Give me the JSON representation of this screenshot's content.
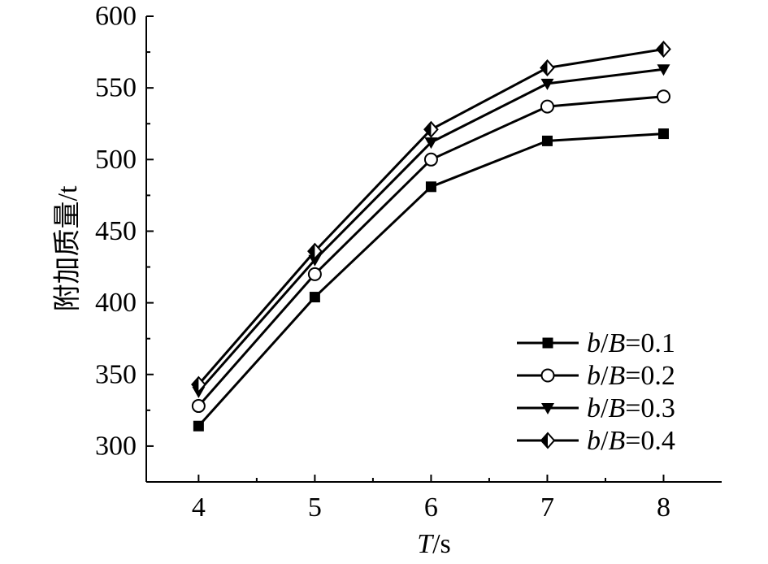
{
  "chart_data": {
    "type": "line",
    "xlabel": {
      "var": "T",
      "unit": "/s"
    },
    "ylabel": "附加质量/t",
    "xlim": [
      3.55,
      8.5
    ],
    "ylim": [
      275,
      600
    ],
    "x_ticks": [
      4,
      5,
      6,
      7,
      8
    ],
    "x_tick_labels": [
      "4",
      "5",
      "6",
      "7",
      "8"
    ],
    "y_ticks": [
      300,
      350,
      400,
      450,
      500,
      550,
      600
    ],
    "y_tick_labels": [
      "300",
      "350",
      "400",
      "450",
      "500",
      "550",
      "600"
    ],
    "grid": false,
    "legend_position": "bottom-right",
    "x": [
      4,
      5,
      6,
      7,
      8
    ],
    "series": [
      {
        "name": "b/B=0.1",
        "name_parts": {
          "var1": "b",
          "sep": "/",
          "var2": "B",
          "rest": "=0.1"
        },
        "marker": "filled-square",
        "values": [
          314,
          404,
          481,
          513,
          518
        ]
      },
      {
        "name": "b/B=0.2",
        "name_parts": {
          "var1": "b",
          "sep": "/",
          "var2": "B",
          "rest": "=0.2"
        },
        "marker": "open-circle",
        "values": [
          328,
          420,
          500,
          537,
          544
        ]
      },
      {
        "name": "b/B=0.3",
        "name_parts": {
          "var1": "b",
          "sep": "/",
          "var2": "B",
          "rest": "=0.3"
        },
        "marker": "filled-down-triangle",
        "values": [
          338,
          430,
          512,
          553,
          563
        ]
      },
      {
        "name": "b/B=0.4",
        "name_parts": {
          "var1": "b",
          "sep": "/",
          "var2": "B",
          "rest": "=0.4"
        },
        "marker": "half-filled-diamond",
        "values": [
          343,
          436,
          521,
          564,
          577
        ]
      }
    ],
    "colors": {
      "line": "#000000",
      "marker_fill": "#000000",
      "marker_open": "#ffffff"
    }
  }
}
